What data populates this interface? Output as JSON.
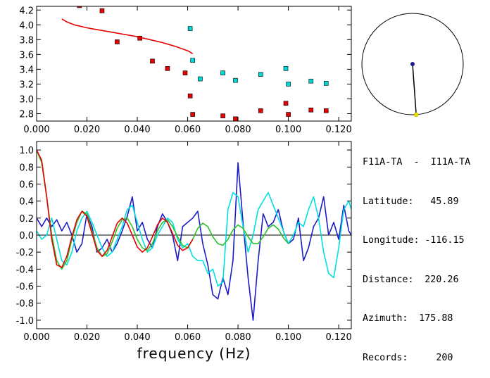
{
  "chart_data": [
    {
      "type": "scatter",
      "xlim": [
        0.0,
        0.125
      ],
      "ylim": [
        2.7,
        4.25
      ],
      "xticks": [
        "0.000",
        "0.020",
        "0.040",
        "0.060",
        "0.080",
        "0.100",
        "0.120"
      ],
      "yticks": [
        "2.8",
        "3.0",
        "3.2",
        "3.4",
        "3.6",
        "3.8",
        "4.0",
        "4.2"
      ],
      "xtick_values": [
        0.0,
        0.02,
        0.04,
        0.06,
        0.08,
        0.1,
        0.12
      ],
      "ytick_values": [
        2.8,
        3.0,
        3.2,
        3.4,
        3.6,
        3.8,
        4.0,
        4.2
      ],
      "series": [
        {
          "color": "#e60000",
          "marker": "square",
          "points": [
            [
              0.017,
              4.26
            ],
            [
              0.026,
              4.19
            ],
            [
              0.032,
              3.77
            ],
            [
              0.041,
              3.82
            ],
            [
              0.046,
              3.51
            ],
            [
              0.052,
              3.41
            ],
            [
              0.059,
              3.35
            ],
            [
              0.061,
              3.04
            ],
            [
              0.062,
              2.79
            ],
            [
              0.074,
              2.77
            ],
            [
              0.079,
              2.73
            ],
            [
              0.089,
              2.84
            ],
            [
              0.099,
              2.94
            ],
            [
              0.1,
              2.79
            ],
            [
              0.109,
              2.85
            ],
            [
              0.115,
              2.84
            ]
          ]
        },
        {
          "color": "#00d8d8",
          "marker": "square",
          "points": [
            [
              0.061,
              3.95
            ],
            [
              0.062,
              3.52
            ],
            [
              0.065,
              3.27
            ],
            [
              0.074,
              3.35
            ],
            [
              0.079,
              3.25
            ],
            [
              0.089,
              3.33
            ],
            [
              0.099,
              3.41
            ],
            [
              0.1,
              3.2
            ],
            [
              0.109,
              3.24
            ],
            [
              0.115,
              3.21
            ]
          ]
        },
        {
          "color": "#e60000",
          "marker": "line",
          "x": [
            0.01,
            0.012,
            0.015,
            0.02,
            0.025,
            0.03,
            0.035,
            0.04,
            0.045,
            0.05,
            0.055,
            0.06,
            0.062
          ],
          "y": [
            4.08,
            4.04,
            4.0,
            3.96,
            3.93,
            3.9,
            3.87,
            3.84,
            3.8,
            3.76,
            3.71,
            3.65,
            3.61
          ]
        }
      ]
    },
    {
      "type": "line",
      "xlim": [
        0.0,
        0.125
      ],
      "ylim": [
        -1.1,
        1.1
      ],
      "xticks": [
        "0.000",
        "0.020",
        "0.040",
        "0.060",
        "0.080",
        "0.100",
        "0.120"
      ],
      "yticks": [
        "1.0",
        "0.8",
        "0.6",
        "0.4",
        "0.2",
        "0.0",
        "-0.2",
        "-0.4",
        "-0.6",
        "-0.8",
        "-1.0"
      ],
      "xtick_values": [
        0.0,
        0.02,
        0.04,
        0.06,
        0.08,
        0.1,
        0.12
      ],
      "ytick_values": [
        1.0,
        0.8,
        0.6,
        0.4,
        0.2,
        0.0,
        -0.2,
        -0.4,
        -0.6,
        -0.8,
        -1.0
      ],
      "xlabel": "frequency (Hz)",
      "series": [
        {
          "color": "#1c1cc8",
          "x": [
            0.0,
            0.002,
            0.004,
            0.006,
            0.008,
            0.01,
            0.012,
            0.014,
            0.016,
            0.018,
            0.02,
            0.022,
            0.024,
            0.026,
            0.028,
            0.03,
            0.032,
            0.034,
            0.036,
            0.038,
            0.04,
            0.042,
            0.044,
            0.046,
            0.048,
            0.05,
            0.052,
            0.054,
            0.056,
            0.058,
            0.06,
            0.062,
            0.064,
            0.066,
            0.068,
            0.07,
            0.072,
            0.074,
            0.076,
            0.078,
            0.08,
            0.082,
            0.084,
            0.086,
            0.088,
            0.09,
            0.092,
            0.094,
            0.096,
            0.098,
            0.1,
            0.102,
            0.104,
            0.106,
            0.108,
            0.11,
            0.112,
            0.114,
            0.116,
            0.118,
            0.12,
            0.122,
            0.124,
            0.125
          ],
          "y": [
            0.2,
            0.1,
            0.2,
            0.1,
            0.18,
            0.05,
            0.15,
            0.0,
            -0.2,
            -0.1,
            0.25,
            0.1,
            -0.2,
            -0.15,
            -0.05,
            -0.2,
            -0.1,
            0.05,
            0.22,
            0.45,
            0.05,
            0.15,
            -0.05,
            -0.15,
            0.1,
            0.25,
            0.15,
            0.0,
            -0.3,
            0.1,
            0.15,
            0.2,
            0.28,
            -0.1,
            -0.35,
            -0.7,
            -0.75,
            -0.5,
            -0.7,
            -0.3,
            0.85,
            0.15,
            -0.5,
            -1.0,
            -0.3,
            0.25,
            0.1,
            0.15,
            0.3,
            0.05,
            -0.1,
            -0.05,
            0.2,
            -0.3,
            -0.15,
            0.1,
            0.2,
            0.45,
            0.0,
            0.15,
            -0.05,
            0.35,
            0.05,
            0.0
          ]
        },
        {
          "color": "#00e0e0",
          "x": [
            0.0,
            0.002,
            0.004,
            0.006,
            0.008,
            0.01,
            0.012,
            0.014,
            0.016,
            0.018,
            0.02,
            0.022,
            0.024,
            0.026,
            0.028,
            0.03,
            0.032,
            0.034,
            0.036,
            0.038,
            0.04,
            0.042,
            0.044,
            0.046,
            0.048,
            0.05,
            0.052,
            0.054,
            0.056,
            0.058,
            0.06,
            0.062,
            0.064,
            0.066,
            0.068,
            0.07,
            0.072,
            0.074,
            0.076,
            0.078,
            0.08,
            0.082,
            0.084,
            0.086,
            0.088,
            0.09,
            0.092,
            0.094,
            0.096,
            0.098,
            0.1,
            0.102,
            0.104,
            0.106,
            0.108,
            0.11,
            0.112,
            0.114,
            0.116,
            0.118,
            0.12,
            0.122,
            0.124,
            0.125
          ],
          "y": [
            0.05,
            -0.05,
            0.0,
            0.2,
            -0.05,
            -0.3,
            -0.35,
            -0.2,
            0.05,
            0.2,
            0.28,
            0.15,
            0.0,
            -0.15,
            -0.25,
            -0.2,
            -0.05,
            0.1,
            0.3,
            0.35,
            0.15,
            -0.05,
            -0.2,
            -0.15,
            0.0,
            0.1,
            0.2,
            0.15,
            -0.05,
            -0.15,
            -0.1,
            -0.25,
            -0.3,
            -0.3,
            -0.45,
            -0.4,
            -0.6,
            -0.55,
            0.3,
            0.5,
            0.45,
            0.1,
            -0.2,
            0.0,
            0.3,
            0.4,
            0.5,
            0.35,
            0.2,
            0.05,
            -0.1,
            0.0,
            0.15,
            0.1,
            0.3,
            0.45,
            0.2,
            -0.2,
            -0.45,
            -0.5,
            -0.15,
            0.3,
            0.4,
            0.3
          ]
        },
        {
          "color": "#2ac42a",
          "x": [
            0.0,
            0.002,
            0.004,
            0.006,
            0.008,
            0.01,
            0.012,
            0.014,
            0.016,
            0.018,
            0.02,
            0.022,
            0.024,
            0.026,
            0.028,
            0.03,
            0.032,
            0.034,
            0.036,
            0.038,
            0.04,
            0.042,
            0.044,
            0.046,
            0.048,
            0.05,
            0.052,
            0.054,
            0.056,
            0.058,
            0.06,
            0.062,
            0.064,
            0.066,
            0.068,
            0.07,
            0.072,
            0.074,
            0.076,
            0.078,
            0.08,
            0.082,
            0.084,
            0.086,
            0.088,
            0.09,
            0.092,
            0.094,
            0.096,
            0.098,
            0.1
          ],
          "y": [
            1.0,
            0.85,
            0.45,
            0.0,
            -0.3,
            -0.4,
            -0.3,
            -0.05,
            0.15,
            0.28,
            0.25,
            0.05,
            -0.15,
            -0.25,
            -0.22,
            -0.08,
            0.08,
            0.18,
            0.2,
            0.1,
            -0.05,
            -0.15,
            -0.18,
            -0.1,
            0.05,
            0.15,
            0.18,
            0.1,
            -0.02,
            -0.12,
            -0.15,
            -0.05,
            0.08,
            0.14,
            0.1,
            -0.02,
            -0.1,
            -0.12,
            -0.05,
            0.06,
            0.12,
            0.08,
            -0.02,
            -0.1,
            -0.1,
            -0.02,
            0.08,
            0.12,
            0.07,
            -0.03,
            -0.1
          ]
        },
        {
          "color": "#e60000",
          "x": [
            0.0,
            0.002,
            0.004,
            0.006,
            0.008,
            0.01,
            0.012,
            0.014,
            0.016,
            0.018,
            0.02,
            0.022,
            0.024,
            0.026,
            0.028,
            0.03,
            0.032,
            0.034,
            0.036,
            0.038,
            0.04,
            0.042,
            0.044,
            0.046,
            0.048,
            0.05,
            0.052,
            0.054,
            0.056,
            0.058,
            0.06,
            0.062
          ],
          "y": [
            1.0,
            0.88,
            0.45,
            -0.05,
            -0.35,
            -0.38,
            -0.25,
            -0.02,
            0.18,
            0.28,
            0.22,
            0.02,
            -0.18,
            -0.25,
            -0.18,
            -0.02,
            0.14,
            0.2,
            0.14,
            0.0,
            -0.14,
            -0.2,
            -0.15,
            -0.02,
            0.12,
            0.2,
            0.15,
            0.02,
            -0.12,
            -0.18,
            -0.15,
            -0.05
          ]
        }
      ]
    }
  ],
  "inset_circle": {
    "dot_color": "#1c1c8c",
    "star_color": "#f0e000"
  },
  "info": {
    "station": "F11A-TA  -  I11A-TA",
    "latitude_label": "Latitude:",
    "latitude": "45.89",
    "longitude_label": "Longitude:",
    "longitude": "-116.15",
    "distance_label": "Distance:",
    "distance": "220.26",
    "azimuth_label": "Azimuth:",
    "azimuth": "175.88",
    "records_label": "Records:",
    "records": "200"
  }
}
